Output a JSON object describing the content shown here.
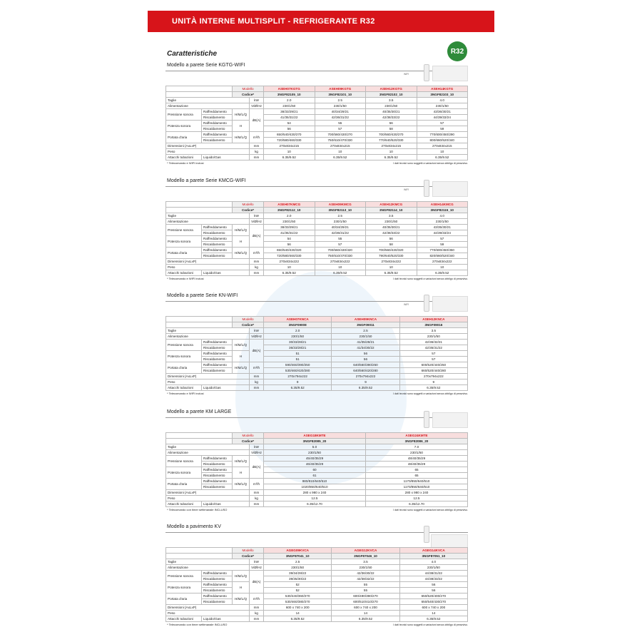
{
  "header": {
    "title": "UNITÀ INTERNE MULTISPLIT - REFRIGERANTE R32",
    "badge": "R32",
    "heading": "Caratteristiche"
  },
  "labels": {
    "modello": "Modello",
    "codice": "Codice*",
    "taglie": "Taglie",
    "alimentazione": "Alimentazione",
    "pressione": "Pressione sonora",
    "potenza": "Potenza sonora",
    "portata": "Portata d'aria",
    "dimensioni": "Dimensioni (AxLxP)",
    "peso": "Peso",
    "attacchi": "Attacchi tubazioni",
    "raff": "Raffreddamento",
    "risc": "Riscaldamento",
    "hmlq": "H/M/L/Q",
    "h": "H",
    "liquido": "Liquido/Gas",
    "kw": "kW",
    "vhz": "V/Ø/Hz",
    "dba": "dB(A)",
    "m3h": "m³/h",
    "mm": "mm",
    "kg": "kg",
    "wifi": "WIFI",
    "disclaimer": "I dati tecnici sono soggetti a variazioni senza obbligo di preavviso."
  },
  "sections": [
    {
      "title": "Modello a parete Serie KGTG-WIFI",
      "wifi": true,
      "footnote": "* Telecomando e WIFI inclusi",
      "models": [
        "ASEH07KGTG",
        "ASEH09KGTG",
        "ASEH12KGTG",
        "ASEH14KGTG"
      ],
      "codes": [
        "3NGF82105_10",
        "3NGF82101_10",
        "3NGF82102_10",
        "3NGF82103_10"
      ],
      "taglie": [
        "2.0",
        "2.5",
        "3.5",
        "4.0"
      ],
      "alimentazione": [
        "230/1/50",
        "230/1/50",
        "230/1/50",
        "230/1/50"
      ],
      "pressione_raff": [
        "38/33/29/21",
        "40/34/29/21",
        "40/35/30/21",
        "43/36/30/21"
      ],
      "pressione_risc": [
        "41/35/31/22",
        "42/36/31/22",
        "42/38/33/22",
        "44/39/33/24"
      ],
      "potenza_raff": [
        "54",
        "55",
        "56",
        "57"
      ],
      "potenza_risc": [
        "56",
        "57",
        "58",
        "59"
      ],
      "portata_raff": [
        "650/540/430/270",
        "700/560/430/270",
        "700/560/430/270",
        "770/600/450/290"
      ],
      "portata_risc": [
        "720/580/460/330",
        "750/610/470/330",
        "770/640/520/330",
        "800/660/520/340"
      ],
      "dimensioni": [
        "270x834x215",
        "270x834x215",
        "270x834x215",
        "270x834x215"
      ],
      "peso": [
        "10",
        "10",
        "10",
        "10"
      ],
      "attacchi": [
        "6.35/9.52",
        "6.35/9.52",
        "6.35/9.52",
        "6.35/9.52"
      ]
    },
    {
      "title": "Modello a parete Serie KMCG-WIFI",
      "wifi": true,
      "footnote": "* Telecomando e WIFI inclusi",
      "models": [
        "ASEH07KMCG",
        "ASEH09KMCG",
        "ASEH12KMCG",
        "ASEH14KMCG"
      ],
      "codes": [
        "3NGF82112_10",
        "3NGF82113_10",
        "3NGF82114_10",
        "3NGF82115_10"
      ],
      "taglie": [
        "2.0",
        "2.5",
        "3.5",
        "4.0"
      ],
      "alimentazione": [
        "230/1/50",
        "230/1/50",
        "230/1/50",
        "230/1/50"
      ],
      "pressione_raff": [
        "38/33/29/21",
        "40/34/29/21",
        "40/35/30/21",
        "43/35/30/21"
      ],
      "pressione_risc": [
        "41/35/31/22",
        "42/36/31/22",
        "42/38/33/22",
        "44/39/33/24"
      ],
      "potenza_raff": [
        "54",
        "55",
        "56",
        "57"
      ],
      "potenza_risc": [
        "56",
        "57",
        "58",
        "59"
      ],
      "portata_raff": [
        "650/540/430/320",
        "700/560/430/320",
        "700/560/430/320",
        "770/600/450/350"
      ],
      "portata_risc": [
        "720/580/460/330",
        "750/610/470/330",
        "790/640/520/330",
        "820/660/520/340"
      ],
      "dimensioni": [
        "270x834x222",
        "270x834x222",
        "270x834x222",
        "270x834x222"
      ],
      "peso": [
        "10",
        "10",
        "10",
        "10"
      ],
      "attacchi": [
        "6.35/9.52",
        "6.35/9.52",
        "6.35/9.52",
        "6.35/9.52"
      ]
    },
    {
      "title": "Modello a parete Serie KN-WIFI",
      "wifi": true,
      "footnote": "* Telecomando e WIFI inclusi",
      "models": [
        "ASEH07KNCA",
        "ASEH09KNCA",
        "ASEH12KNCA"
      ],
      "codes": [
        "3NGF09008",
        "3NGF09011",
        "3NGF09016"
      ],
      "taglie": [
        "2.0",
        "2.5",
        "3.5"
      ],
      "alimentazione": [
        "230/1/50",
        "230/1/50",
        "230/1/50"
      ],
      "pressione_raff": [
        "30/33/28/21",
        "41/35/28/21",
        "42/36/32/21"
      ],
      "pressione_risc": [
        "36/33/28/21",
        "41/34/30/22",
        "42/35/31/22"
      ],
      "potenza_raff": [
        "51",
        "56",
        "57"
      ],
      "potenza_risc": [
        "51",
        "56",
        "57"
      ],
      "portata_raff": [
        "590/460/390/250",
        "640/560/390/250",
        "600/520/440/250"
      ],
      "portata_risc": [
        "530/460/420/280",
        "640/560/420/280",
        "660/520/440/280"
      ],
      "dimensioni": [
        "270x794x222",
        "270x794x222",
        "270x794x222"
      ],
      "peso": [
        "9",
        "9",
        "9"
      ],
      "attacchi": [
        "6.35/9.52",
        "6.35/9.52",
        "6.35/9.52"
      ]
    },
    {
      "title": "Modello a parete KM LARGE",
      "wifi": false,
      "footnote": "* Telecomando con timer settimanale INCLUSO",
      "models": [
        "ASEG18KMTE",
        "ASEG24KMTE"
      ],
      "codes": [
        "3NGF82085_20",
        "3NGF82086_20"
      ],
      "taglie": [
        "5.0",
        "7.0"
      ],
      "alimentazione": [
        "230/1/50",
        "230/1/50"
      ],
      "pressione_raff": [
        "45/40/35/29",
        "48/40/35/29"
      ],
      "pressione_risc": [
        "46/40/35/29",
        "48/40/35/29"
      ],
      "potenza_raff": [
        "60",
        "65"
      ],
      "potenza_risc": [
        "61",
        "65"
      ],
      "portata_raff": [
        "980/810/640/510",
        "1170/850/640/510"
      ],
      "portata_risc": [
        "1020/850/640/510",
        "1170/850/640/510"
      ],
      "dimensioni": [
        "280 x 980 x 240",
        "280 x 980 x 240"
      ],
      "peso": [
        "12.5",
        "12.5"
      ],
      "attacchi": [
        "6.35/12.70",
        "6.35/12.70"
      ]
    },
    {
      "title": "Modello a pavimento KV",
      "wifi": false,
      "footnote": "* Telecomando con timer settimanale INCLUSO",
      "models": [
        "AGEG09KVCA",
        "AGEG12KVCA",
        "AGEG14KVCA"
      ],
      "codes": [
        "3NGF87041_10",
        "3NGF87046_10",
        "3NGF87051_10"
      ],
      "taglie": [
        "2.5",
        "3.5",
        "4.0"
      ],
      "alimentazione": [
        "230/1/50",
        "230/1/50",
        "230/1/50"
      ],
      "pressione_raff": [
        "39/34/28/22",
        "42/36/30/22",
        "44/38/31/22"
      ],
      "pressione_risc": [
        "39/35/30/22",
        "42/38/32/22",
        "44/38/33/22"
      ],
      "potenza_raff": [
        "52",
        "55",
        "56"
      ],
      "potenza_risc": [
        "52",
        "55",
        "56"
      ],
      "portata_raff": [
        "530/440/360/270",
        "600/490/390/270",
        "650/520/400/270"
      ],
      "portata_risc": [
        "530/460/380/270",
        "600/510/410/270",
        "650/540/430/270"
      ],
      "dimensioni": [
        "600 x 740 x 200",
        "600 x 740 x 200",
        "600 x 740 x 200"
      ],
      "peso": [
        "14",
        "14",
        "14"
      ],
      "attacchi": [
        "6.35/9.52",
        "6.35/9.52",
        "6.35/9.52"
      ]
    }
  ]
}
